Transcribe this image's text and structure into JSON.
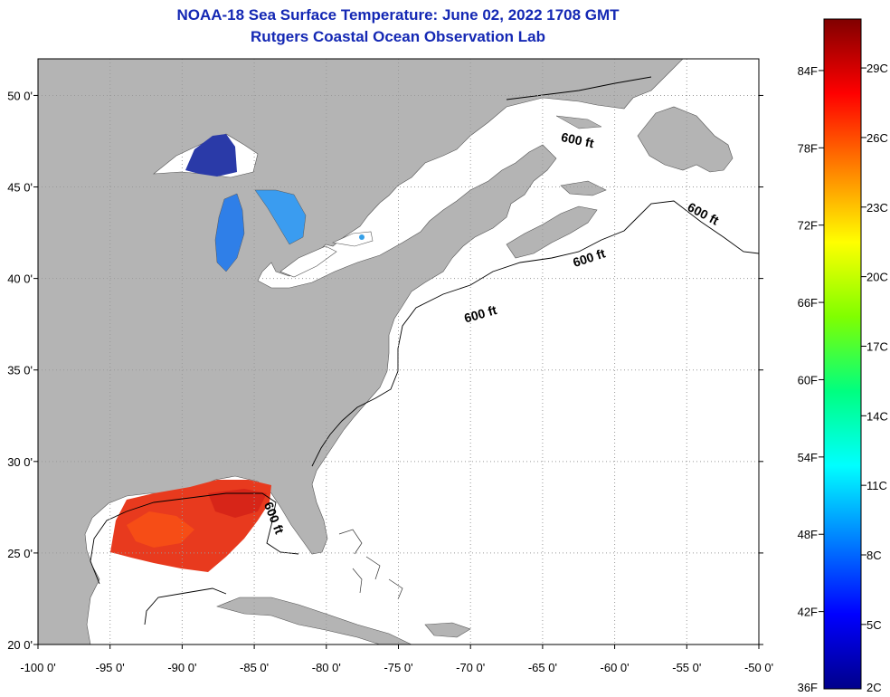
{
  "title": {
    "line1": "NOAA-18 Sea Surface Temperature:  June 02, 2022 1708 GMT",
    "line2": "Rutgers Coastal Ocean Observation Lab"
  },
  "map": {
    "lon_range": [
      -100,
      -50
    ],
    "lat_range": [
      20,
      52
    ],
    "lon_ticks": [
      "-100 0'",
      "-95 0'",
      "-90 0'",
      "-85 0'",
      "-80 0'",
      "-75 0'",
      "-70 0'",
      "-65 0'",
      "-60 0'",
      "-55 0'",
      "-50 0'"
    ],
    "lat_ticks": [
      "50 0'",
      "45 0'",
      "40 0'",
      "35 0'",
      "30 0'",
      "25 0'",
      "20 0'"
    ],
    "isobath_labels": [
      "600 ft",
      "600 ft",
      "600 ft",
      "600 ft",
      "600 ft"
    ],
    "colors": {
      "land": "#b4b4b4",
      "ocean": "#ffffff",
      "isobath": "#000000",
      "grid": "#9a9a9a"
    }
  },
  "colorbar": {
    "min_f": 36,
    "max_f": 88,
    "f_labels": [
      "84F",
      "78F",
      "72F",
      "66F",
      "60F",
      "54F",
      "48F",
      "42F",
      "36F"
    ],
    "c_labels": [
      "29C",
      "26C",
      "23C",
      "20C",
      "17C",
      "14C",
      "11C",
      "8C",
      "5C",
      "2C"
    ],
    "stops": [
      "#00008a",
      "#0000ff",
      "#0080ff",
      "#00ffff",
      "#00ff80",
      "#80ff00",
      "#ffff00",
      "#ff8000",
      "#ff0000",
      "#800000"
    ]
  }
}
